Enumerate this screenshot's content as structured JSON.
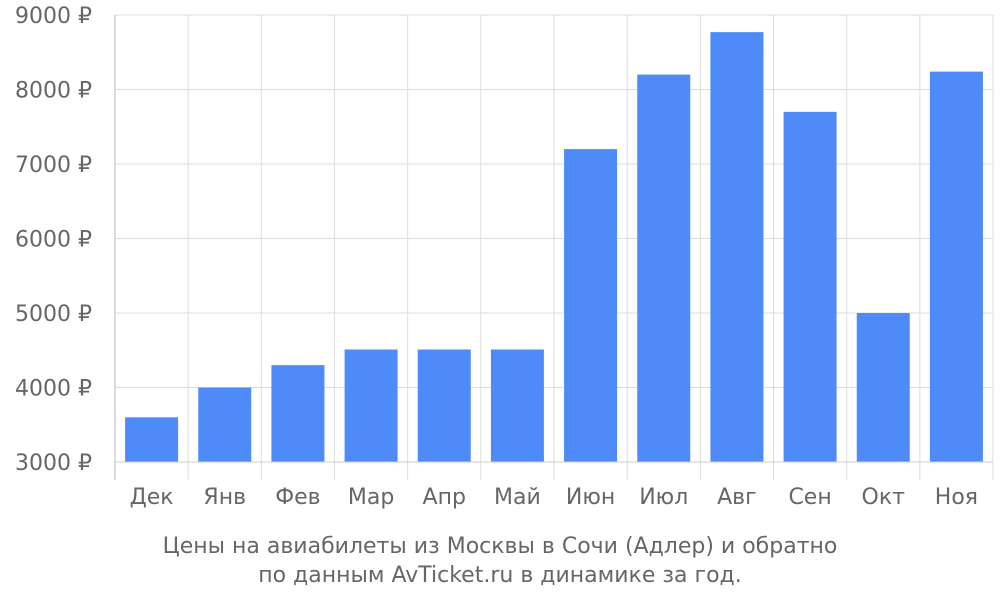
{
  "chart_data": {
    "type": "bar",
    "categories": [
      "Дек",
      "Янв",
      "Фев",
      "Мар",
      "Апр",
      "Май",
      "Июн",
      "Июл",
      "Авг",
      "Сен",
      "Окт",
      "Ноя"
    ],
    "values": [
      3600,
      4000,
      4300,
      4510,
      4510,
      4510,
      7200,
      8200,
      8770,
      7700,
      5000,
      8240
    ],
    "ylim": [
      3000,
      9000
    ],
    "y_ticks": [
      "3000 ₽",
      "4000 ₽",
      "5000 ₽",
      "6000 ₽",
      "7000 ₽",
      "8000 ₽",
      "9000 ₽"
    ],
    "grid": true,
    "bar_color": "#4e8bf9",
    "title": "Цены на авиабилеты из Москвы в Сочи (Адлер) и обратно",
    "subtitle": "по данным AvTicket.ru в динамике за год."
  }
}
